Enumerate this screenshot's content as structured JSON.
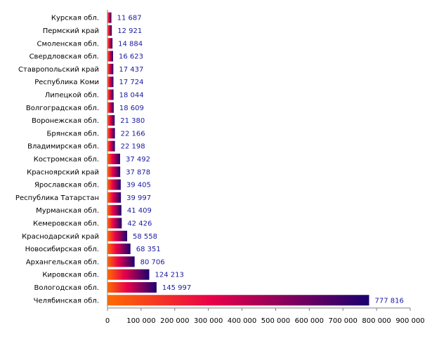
{
  "chart_data": {
    "type": "bar",
    "orientation": "horizontal",
    "categories": [
      "Курская обл.",
      "Пермский край",
      "Смоленская обл.",
      "Свердловская обл.",
      "Ставропольский край",
      "Республика Коми",
      "Липецкой обл.",
      "Волгоградская обл.",
      "Воронежская обл.",
      "Брянская обл.",
      "Владимирская обл.",
      "Костромская обл.",
      "Красноярский край",
      "Ярославская обл.",
      "Республика Татарстан",
      "Мурманская обл.",
      "Кемеровская обл.",
      "Краснодарский край",
      "Новосибирская обл.",
      "Архангельская обл.",
      "Кировская обл.",
      "Вологодская обл.",
      "Челябинская обл."
    ],
    "values": [
      11687,
      12921,
      14884,
      16623,
      17437,
      17724,
      18044,
      18609,
      21380,
      22166,
      22198,
      37492,
      37878,
      39405,
      39997,
      41409,
      42426,
      58558,
      68351,
      80706,
      124213,
      145997,
      777816
    ],
    "value_labels": [
      "11 687",
      "12 921",
      "14 884",
      "16 623",
      "17 437",
      "17 724",
      "18 044",
      "18 609",
      "21 380",
      "22 166",
      "22 198",
      "37 492",
      "37 878",
      "39 405",
      "39 997",
      "41 409",
      "42 426",
      "58 558",
      "68 351",
      "80 706",
      "124 213",
      "145 997",
      "777 816"
    ],
    "x_ticks": [
      0,
      100000,
      200000,
      300000,
      400000,
      500000,
      600000,
      700000,
      800000,
      900000
    ],
    "x_tick_labels": [
      "0",
      "100 000",
      "200 000",
      "300 000",
      "400 000",
      "500 000",
      "600 000",
      "700 000",
      "800 000",
      "900 000"
    ],
    "xlim": [
      0,
      900000
    ],
    "title": "",
    "xlabel": "",
    "ylabel": "",
    "grid": false,
    "legend": "none",
    "colors": {
      "gradient_start": "#ff6a00",
      "gradient_mid": "#e8004a",
      "gradient_end": "#1a0070",
      "value_label": "#1a1aa0",
      "axis": "#7f7f7f"
    }
  }
}
